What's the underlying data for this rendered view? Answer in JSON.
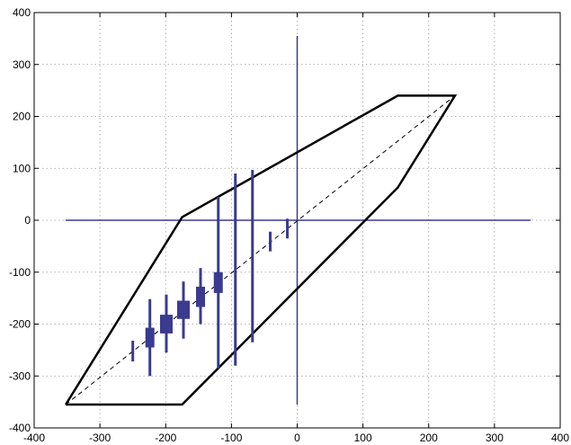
{
  "chart_data": {
    "type": "line",
    "title": "",
    "xlabel": "",
    "ylabel": "",
    "xlim": [
      -400,
      400
    ],
    "ylim": [
      -400,
      400
    ],
    "xticks": [
      -400,
      -300,
      -200,
      -100,
      0,
      100,
      200,
      300,
      400
    ],
    "yticks": [
      -400,
      -300,
      -200,
      -100,
      0,
      100,
      200,
      300,
      400
    ],
    "grid": true,
    "polygon": {
      "color": "#000000",
      "x": [
        -352,
        -175,
        153,
        240,
        153,
        -175,
        -352
      ],
      "y": [
        -355,
        6,
        240,
        240,
        63,
        -355,
        -355
      ]
    },
    "diagonal": {
      "color": "#000000",
      "x": [
        -352,
        240
      ],
      "y": [
        -355,
        240
      ]
    },
    "axes_lines": {
      "color": "#3a3a90",
      "horizontal": {
        "x": [
          -352,
          355
        ],
        "y": 0
      },
      "vertical": {
        "x": 0,
        "y": [
          -355,
          355
        ]
      }
    },
    "error_bars": {
      "color": "#3a3a90",
      "items": [
        {
          "x": -250,
          "low": -272,
          "high": -232,
          "box_low": -272,
          "box_high": -232,
          "box_width": 3
        },
        {
          "x": -224,
          "low": -300,
          "high": -152,
          "box_low": -245,
          "box_high": -207,
          "box_width": 10
        },
        {
          "x": -199,
          "low": -255,
          "high": -143,
          "box_low": -218,
          "box_high": -182,
          "box_width": 14
        },
        {
          "x": -173,
          "low": -228,
          "high": -118,
          "box_low": -190,
          "box_high": -155,
          "box_width": 14
        },
        {
          "x": -147,
          "low": -200,
          "high": -92,
          "box_low": -167,
          "box_high": -128,
          "box_width": 10
        },
        {
          "x": -120,
          "low": -285,
          "high": 45,
          "box_low": -140,
          "box_high": -100,
          "box_width": 10
        },
        {
          "x": -94,
          "low": -280,
          "high": 90,
          "box_low": -280,
          "box_high": 90,
          "box_width": 3
        },
        {
          "x": -68,
          "low": -235,
          "high": 97,
          "box_low": -235,
          "box_high": 97,
          "box_width": 3
        },
        {
          "x": -41,
          "low": -60,
          "high": -22,
          "box_low": -60,
          "box_high": -22,
          "box_width": 3
        },
        {
          "x": -15,
          "low": -35,
          "high": 3,
          "box_low": -35,
          "box_high": 3,
          "box_width": 3
        }
      ]
    }
  }
}
